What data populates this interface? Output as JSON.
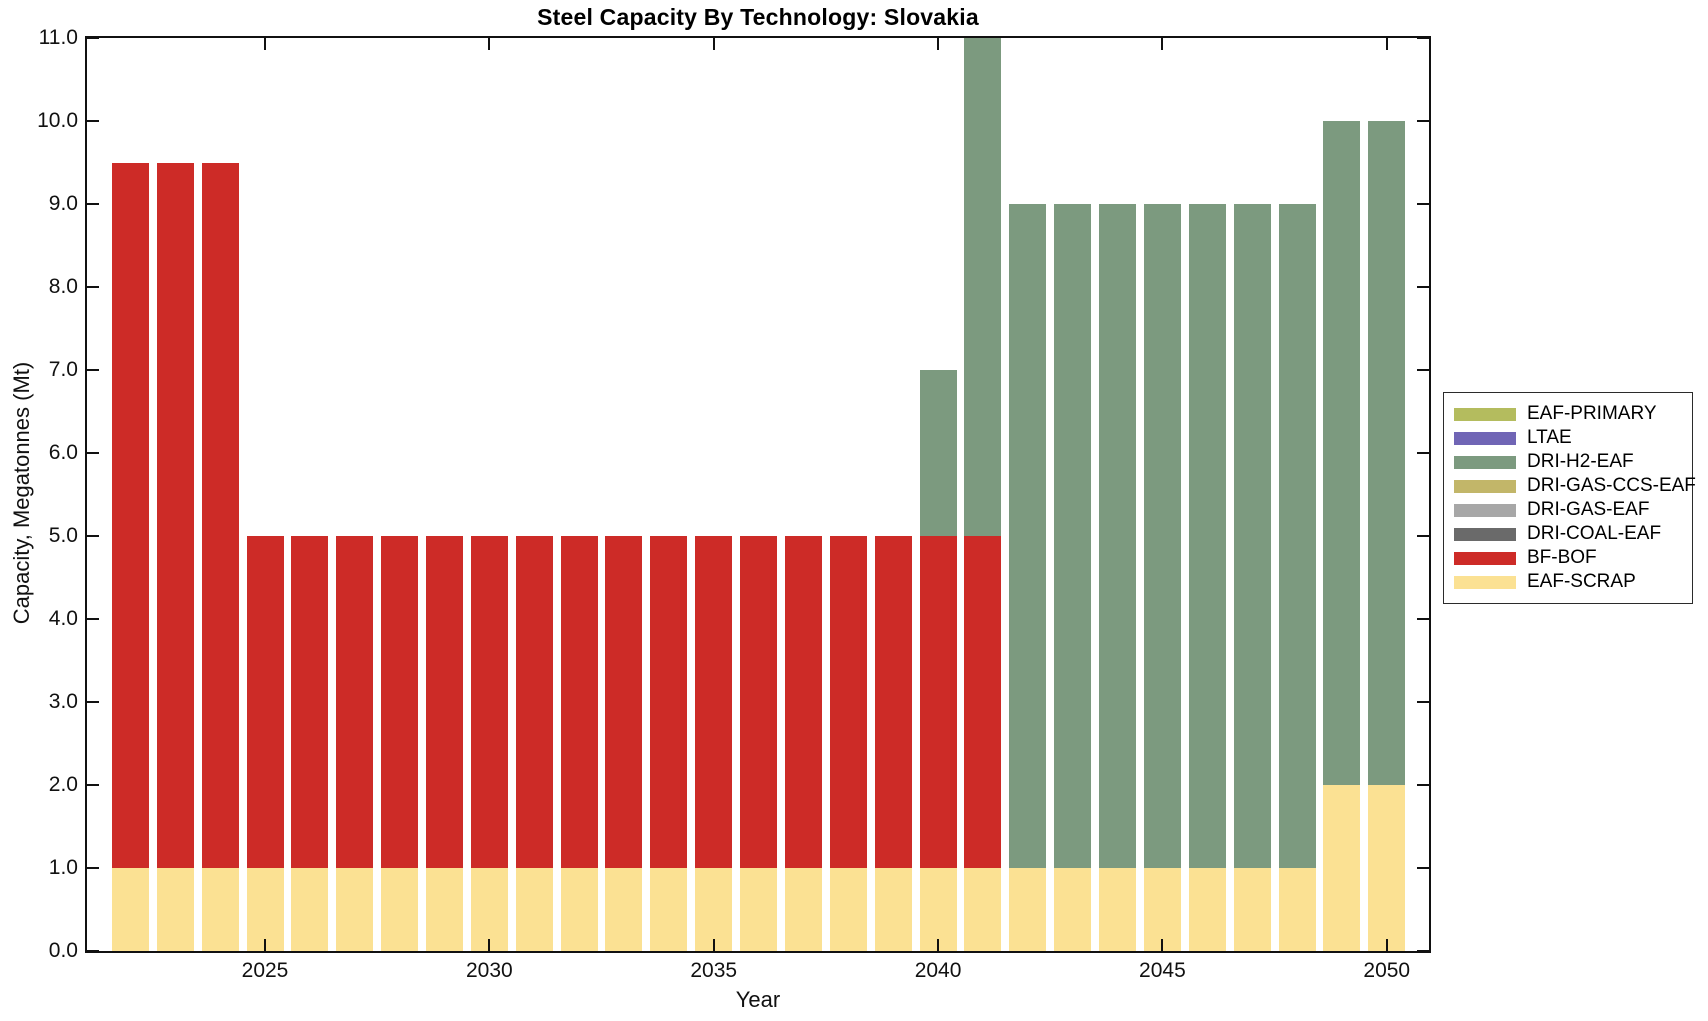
{
  "title": "Steel Capacity By Technology: Slovakia",
  "axes": {
    "x_label": "Year",
    "y_label": "Capacity, Megatonnes (Mt)",
    "x_tick_years": [
      2025,
      2030,
      2035,
      2040,
      2045,
      2050
    ],
    "y_tick_labels": [
      "0.0",
      "1.0",
      "2.0",
      "3.0",
      "4.0",
      "5.0",
      "6.0",
      "7.0",
      "8.0",
      "9.0",
      "10.0",
      "11.0"
    ],
    "y_lim": [
      0,
      11
    ]
  },
  "legend": {
    "entries": [
      {
        "label": "EAF-PRIMARY",
        "color": "#b4bc5e"
      },
      {
        "label": "LTAE",
        "color": "#7065b5"
      },
      {
        "label": "DRI-H2-EAF",
        "color": "#7c9a7f"
      },
      {
        "label": "DRI-GAS-CCS-EAF",
        "color": "#c2b669"
      },
      {
        "label": "DRI-GAS-EAF",
        "color": "#a7a7a7"
      },
      {
        "label": "DRI-COAL-EAF",
        "color": "#6a6a6a"
      },
      {
        "label": "BF-BOF",
        "color": "#cd2b27"
      },
      {
        "label": "EAF-SCRAP",
        "color": "#fbe193"
      }
    ]
  },
  "chart_data": {
    "type": "bar",
    "stacked": true,
    "title": "Steel Capacity By Technology: Slovakia",
    "xlabel": "Year",
    "ylabel": "Capacity, Megatonnes (Mt)",
    "ylim": [
      0,
      11
    ],
    "grid": false,
    "legend_position": "outside-right",
    "categories": [
      2022,
      2023,
      2024,
      2025,
      2026,
      2027,
      2028,
      2029,
      2030,
      2031,
      2032,
      2033,
      2034,
      2035,
      2036,
      2037,
      2038,
      2039,
      2040,
      2041,
      2042,
      2043,
      2044,
      2045,
      2046,
      2047,
      2048,
      2049,
      2050
    ],
    "series": [
      {
        "name": "EAF-SCRAP",
        "color": "#fbe193",
        "values": [
          1,
          1,
          1,
          1,
          1,
          1,
          1,
          1,
          1,
          1,
          1,
          1,
          1,
          1,
          1,
          1,
          1,
          1,
          1,
          1,
          1,
          1,
          1,
          1,
          1,
          1,
          1,
          2,
          2
        ]
      },
      {
        "name": "BF-BOF",
        "color": "#cd2b27",
        "values": [
          8.5,
          8.5,
          8.5,
          4,
          4,
          4,
          4,
          4,
          4,
          4,
          4,
          4,
          4,
          4,
          4,
          4,
          4,
          4,
          4,
          4,
          0,
          0,
          0,
          0,
          0,
          0,
          0,
          0,
          0
        ]
      },
      {
        "name": "DRI-H2-EAF",
        "color": "#7c9a7f",
        "values": [
          0,
          0,
          0,
          0,
          0,
          0,
          0,
          0,
          0,
          0,
          0,
          0,
          0,
          0,
          0,
          0,
          0,
          0,
          2,
          6,
          8,
          8,
          8,
          8,
          8,
          8,
          8,
          8,
          8
        ]
      }
    ],
    "totals": [
      9.5,
      9.5,
      9.5,
      5,
      5,
      5,
      5,
      5,
      5,
      5,
      5,
      5,
      5,
      5,
      5,
      5,
      5,
      5,
      7,
      11,
      9,
      9,
      9,
      9,
      9,
      9,
      9,
      10,
      10
    ],
    "notes": "The 2041 column reaches the top of the axes and is clipped at the y-axis maximum of 11.0 Mt. Legend entries EAF-PRIMARY, LTAE, DRI-GAS-CCS-EAF, DRI-GAS-EAF and DRI-COAL-EAF have no visible bars."
  }
}
